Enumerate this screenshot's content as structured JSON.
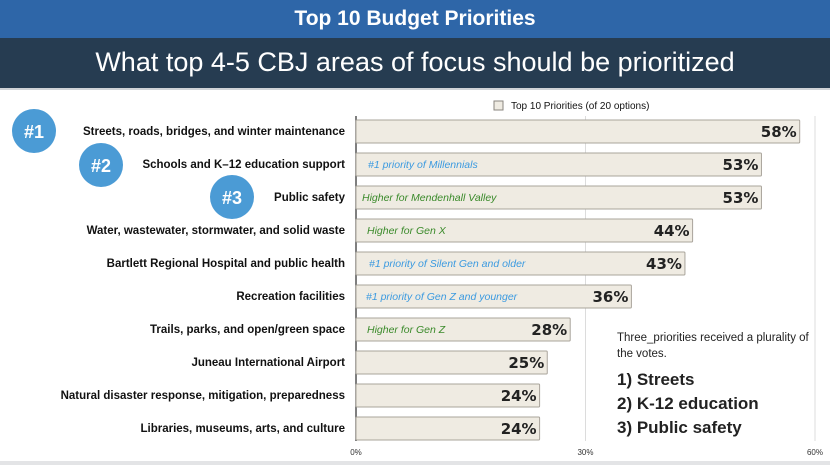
{
  "header": {
    "title": "Top 10 Budget Priorities",
    "subtitle": "What top 4-5 CBJ areas of focus should be prioritized"
  },
  "colors": {
    "title_bar": "#2e66a8",
    "subtitle_bar": "#263c51",
    "bar_fill": "#efebe2",
    "bar_stroke": "#a9a49b",
    "badge": "#4b9bd5",
    "note_blue": "#3b9ae0",
    "note_green": "#3a8a2a"
  },
  "badges": [
    "#1",
    "#2",
    "#3"
  ],
  "summary": {
    "intro": "Three_priorities received a plurality of the votes.",
    "items": [
      "1) Streets",
      "2) K-12 education",
      "3) Public safety"
    ]
  },
  "chart_data": {
    "type": "bar",
    "orientation": "horizontal",
    "title": "Top 10 Budget Priorities",
    "legend": {
      "label": "Top 10 Priorities (of 20 options)",
      "placement": "top"
    },
    "categories": [
      "Streets, roads, bridges, and winter maintenance",
      "Schools and K–12 education support",
      "Public safety",
      "Water, wastewater, stormwater, and solid waste",
      "Bartlett Regional Hospital and public health",
      "Recreation facilities",
      "Trails, parks, and open/green space",
      "Juneau International Airport",
      "Natural disaster response, mitigation, preparedness",
      "Libraries, museums, arts, and culture"
    ],
    "values": [
      58,
      53,
      53,
      44,
      43,
      36,
      28,
      25,
      24,
      24
    ],
    "value_labels": [
      "58%",
      "53%",
      "53%",
      "44%",
      "43%",
      "36%",
      "28%",
      "25%",
      "24%",
      "24%"
    ],
    "annotations": [
      {
        "index": 1,
        "text": "#1 priority of Millennials",
        "color": "blue"
      },
      {
        "index": 2,
        "text": "Higher for Mendenhall Valley",
        "color": "green"
      },
      {
        "index": 3,
        "text": "Higher for Gen X",
        "color": "green"
      },
      {
        "index": 4,
        "text": "#1 priority of Silent Gen and older",
        "color": "blue"
      },
      {
        "index": 5,
        "text": "#1 priority of Gen Z and younger",
        "color": "blue"
      },
      {
        "index": 6,
        "text": "Higher for Gen Z",
        "color": "green"
      }
    ],
    "xlim": [
      0,
      60
    ],
    "xticks": [
      0,
      30,
      60
    ],
    "xtick_labels": [
      "0%",
      "30%",
      "60%"
    ],
    "xlabel": "",
    "ylabel": "",
    "grid": true
  }
}
